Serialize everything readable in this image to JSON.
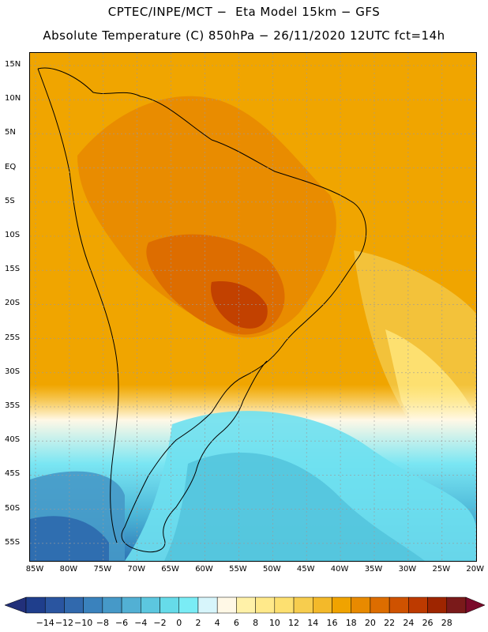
{
  "header": {
    "line1": "CPTEC/INPE/MCT −  Eta Model 15km − GFS",
    "line2": "Absolute Temperature (C) 850hPa − 26/11/2020 12UTC fct=14h"
  },
  "map": {
    "lat_labels": [
      "15N",
      "10N",
      "5N",
      "EQ",
      "5S",
      "10S",
      "15S",
      "20S",
      "25S",
      "30S",
      "35S",
      "40S",
      "45S",
      "50S",
      "55S"
    ],
    "lon_labels": [
      "85W",
      "80W",
      "75W",
      "70W",
      "65W",
      "60W",
      "55W",
      "50W",
      "45W",
      "40W",
      "35W",
      "30W",
      "25W",
      "20W"
    ]
  },
  "colorbar": {
    "labels": [
      "−14",
      "−12",
      "−10",
      "−8",
      "−6",
      "−4",
      "−2",
      "0",
      "2",
      "4",
      "6",
      "8",
      "10",
      "12",
      "14",
      "16",
      "18",
      "20",
      "22",
      "24",
      "26",
      "28"
    ],
    "colors": [
      "#1f3e8c",
      "#2a55a0",
      "#3169ad",
      "#3a82bd",
      "#4699c8",
      "#52b0d4",
      "#5cc7df",
      "#66dbe9",
      "#7aecf5",
      "#d7f5fb",
      "#fff8e6",
      "#fff1a8",
      "#ffe98a",
      "#fde070",
      "#f7cd4e",
      "#f3b92a",
      "#f0a300",
      "#e88a00",
      "#dd6d00",
      "#cf5200",
      "#bd3a00",
      "#9e2500",
      "#7a1a1a"
    ],
    "under_color": "#22307a",
    "over_color": "#7a0a2a"
  }
}
